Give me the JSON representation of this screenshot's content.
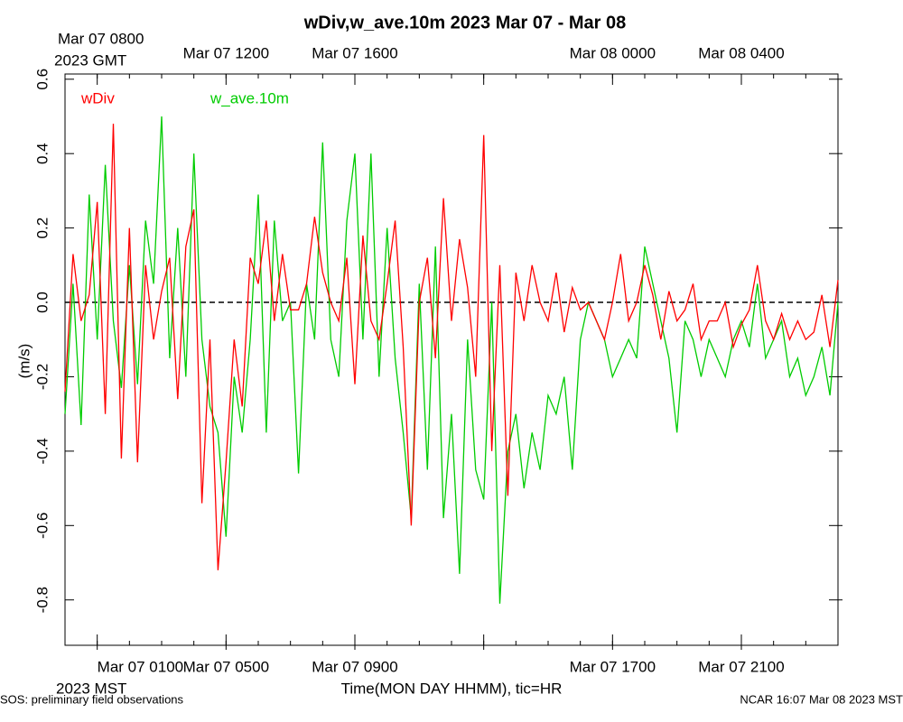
{
  "chart_data": {
    "type": "line",
    "title": "wDiv,w_ave.10m 2023 Mar 07 - Mar 08",
    "x_label": "Time(MON DAY HHMM), tic=HR",
    "y_label": "(m/s)",
    "x_sublabel": "2023 MST",
    "x2_sublabel": "2023 GMT",
    "footer_left": "SOS: preliminary field observations",
    "footer_right": "NCAR 16:07 Mar 08 2023 MST",
    "zero_line": true,
    "xlim": [
      0,
      24
    ],
    "ylim": [
      -0.922,
      0.614
    ],
    "yticks": [
      -0.8,
      -0.6,
      -0.4,
      -0.2,
      {
        "value": 0,
        "label": "0.0"
      },
      0.2,
      0.4,
      0.6
    ],
    "xticks": [
      {
        "value": 1,
        "label": "Mar 07 0100"
      },
      {
        "value": 5,
        "label": "Mar 07 0500"
      },
      {
        "value": 9,
        "label": "Mar 07 0900"
      },
      {
        "value": 17,
        "label": "Mar 07 1700"
      },
      {
        "value": 21,
        "label": "Mar 07 2100"
      }
    ],
    "x2ticks": [
      {
        "value": 1,
        "label": "Mar 07 0800"
      },
      {
        "value": 5,
        "label": "Mar 07 1200"
      },
      {
        "value": 9,
        "label": "Mar 07 1600"
      },
      {
        "value": 17,
        "label": "Mar 08 0000"
      },
      {
        "value": 21,
        "label": "Mar 08 0400"
      }
    ],
    "xmajorticks": [
      1,
      5,
      9,
      13,
      17,
      21
    ],
    "xminorticks": [
      0,
      1,
      2,
      3,
      4,
      5,
      6,
      7,
      8,
      9,
      10,
      11,
      12,
      13,
      14,
      15,
      16,
      17,
      18,
      19,
      20,
      21,
      22,
      23,
      24
    ],
    "x": [
      0,
      0.25,
      0.5,
      0.75,
      1,
      1.25,
      1.5,
      1.75,
      2,
      2.25,
      2.5,
      2.75,
      3,
      3.25,
      3.5,
      3.75,
      4,
      4.25,
      4.5,
      4.75,
      5,
      5.25,
      5.5,
      5.75,
      6,
      6.25,
      6.5,
      6.75,
      7,
      7.25,
      7.5,
      7.75,
      8,
      8.25,
      8.5,
      8.75,
      9,
      9.25,
      9.5,
      9.75,
      10,
      10.25,
      10.5,
      10.75,
      11,
      11.25,
      11.5,
      11.75,
      12,
      12.25,
      12.5,
      12.75,
      13,
      13.25,
      13.5,
      13.75,
      14,
      14.25,
      14.5,
      14.75,
      15,
      15.25,
      15.5,
      15.75,
      16,
      16.25,
      16.5,
      16.75,
      17,
      17.25,
      17.5,
      17.75,
      18,
      18.25,
      18.5,
      18.75,
      19,
      19.25,
      19.5,
      19.75,
      20,
      20.25,
      20.5,
      20.75,
      21,
      21.25,
      21.5,
      21.75,
      22,
      22.25,
      22.5,
      22.75,
      23,
      23.25,
      23.5,
      23.75,
      24
    ],
    "series": [
      {
        "name": "wDiv",
        "color": "#ff0000",
        "values": [
          -0.24,
          0.13,
          -0.05,
          0.02,
          0.27,
          -0.3,
          0.48,
          -0.42,
          0.2,
          -0.43,
          0.1,
          -0.1,
          0.03,
          0.12,
          -0.26,
          0.15,
          0.25,
          -0.54,
          -0.1,
          -0.72,
          -0.43,
          -0.1,
          -0.28,
          0.12,
          0.05,
          0.22,
          -0.05,
          0.13,
          -0.02,
          -0.02,
          0.05,
          0.23,
          0.08,
          0,
          -0.05,
          0.12,
          -0.22,
          0.18,
          -0.05,
          -0.1,
          0.05,
          0.22,
          -0.12,
          -0.6,
          0,
          0.12,
          -0.15,
          0.28,
          -0.05,
          0.17,
          0.04,
          -0.2,
          0.45,
          -0.4,
          0.1,
          -0.52,
          0.08,
          -0.05,
          0.1,
          0,
          -0.05,
          0.08,
          -0.08,
          0.04,
          -0.02,
          0,
          -0.05,
          -0.1,
          0,
          0.13,
          -0.05,
          0,
          0.1,
          0.02,
          -0.1,
          0.03,
          -0.05,
          -0.02,
          0.05,
          -0.1,
          -0.05,
          -0.05,
          0,
          -0.12,
          -0.06,
          -0.02,
          0.1,
          -0.05,
          -0.1,
          -0.03,
          -0.1,
          -0.05,
          -0.1,
          -0.08,
          0.02,
          -0.12,
          0.06
        ]
      },
      {
        "name": "w_ave.10m",
        "color": "#00cc00",
        "values": [
          -0.3,
          0.05,
          -0.33,
          0.29,
          -0.1,
          0.37,
          -0.05,
          -0.23,
          0.1,
          -0.22,
          0.22,
          0.05,
          0.5,
          -0.15,
          0.2,
          -0.2,
          0.4,
          -0.1,
          -0.28,
          -0.35,
          -0.63,
          -0.2,
          -0.35,
          -0.1,
          0.29,
          -0.35,
          0.22,
          -0.05,
          0,
          -0.46,
          0.05,
          -0.1,
          0.43,
          -0.1,
          -0.2,
          0.22,
          0.4,
          -0.1,
          0.4,
          -0.2,
          0.2,
          -0.15,
          -0.35,
          -0.58,
          0.05,
          -0.45,
          0.15,
          -0.58,
          -0.3,
          -0.73,
          -0.1,
          -0.45,
          -0.53,
          0,
          -0.81,
          -0.4,
          -0.3,
          -0.5,
          -0.35,
          -0.45,
          -0.25,
          -0.3,
          -0.2,
          -0.45,
          -0.1,
          0,
          -0.05,
          -0.1,
          -0.2,
          -0.15,
          -0.1,
          -0.15,
          0.15,
          0.05,
          -0.05,
          -0.15,
          -0.35,
          -0.05,
          -0.1,
          -0.2,
          -0.1,
          -0.15,
          -0.2,
          -0.1,
          -0.05,
          -0.12,
          0.05,
          -0.15,
          -0.1,
          -0.05,
          -0.2,
          -0.15,
          -0.25,
          -0.2,
          -0.12,
          -0.25,
          0
        ]
      }
    ]
  }
}
